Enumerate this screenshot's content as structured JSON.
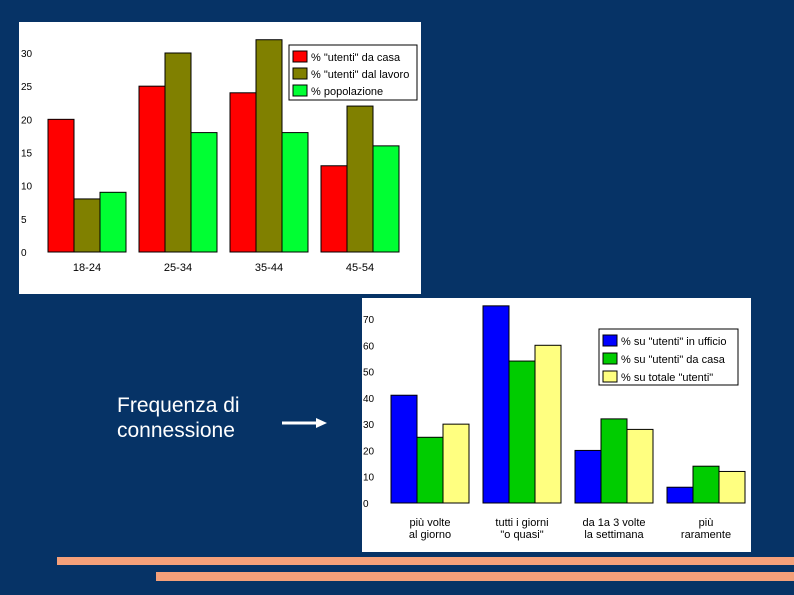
{
  "caption": {
    "line1": "Frequenza di",
    "line2": "connessione"
  },
  "colors": {
    "background": "#063366",
    "accent_lines": "#f4a07a",
    "red": "#ff0000",
    "olive": "#808000",
    "green": "#00ff33",
    "blue": "#0000ff",
    "green2": "#00cc00",
    "yellow": "#ffff80"
  },
  "chart_data": [
    {
      "type": "bar",
      "categories": [
        "18-24",
        "25-34",
        "35-44",
        "45-54"
      ],
      "ylim": [
        0,
        30
      ],
      "y_ticks": [
        "0",
        "5",
        "10",
        "15",
        "20",
        "25",
        "30"
      ],
      "legend_position": "top-right",
      "series": [
        {
          "name": "% \"utenti\" da casa",
          "color": "#ff0000",
          "values": [
            20,
            25,
            24,
            13
          ]
        },
        {
          "name": "% \"utenti\" dal lavoro",
          "color": "#808000",
          "values": [
            8,
            30,
            32,
            22
          ]
        },
        {
          "name": "% popolazione",
          "color": "#00ff33",
          "values": [
            9,
            18,
            18,
            16
          ]
        }
      ]
    },
    {
      "type": "bar",
      "categories": [
        [
          "più volte",
          "al giorno"
        ],
        [
          "tutti i giorni",
          "\"o quasi\""
        ],
        [
          "da 1a 3 volte",
          "la settimana"
        ],
        [
          "più",
          "raramente"
        ]
      ],
      "ylim": [
        0,
        70
      ],
      "y_ticks": [
        "0",
        "10",
        "20",
        "30",
        "40",
        "50",
        "60",
        "70"
      ],
      "legend_position": "top-right",
      "series": [
        {
          "name": "% su \"utenti\" in ufficio",
          "color": "#0000ff",
          "values": [
            41,
            75,
            20,
            6
          ]
        },
        {
          "name": "% su \"utenti\" da casa",
          "color": "#00cc00",
          "values": [
            25,
            54,
            32,
            14
          ]
        },
        {
          "name": "% su totale \"utenti\"",
          "color": "#ffff80",
          "values": [
            30,
            60,
            28,
            12
          ]
        }
      ]
    }
  ]
}
